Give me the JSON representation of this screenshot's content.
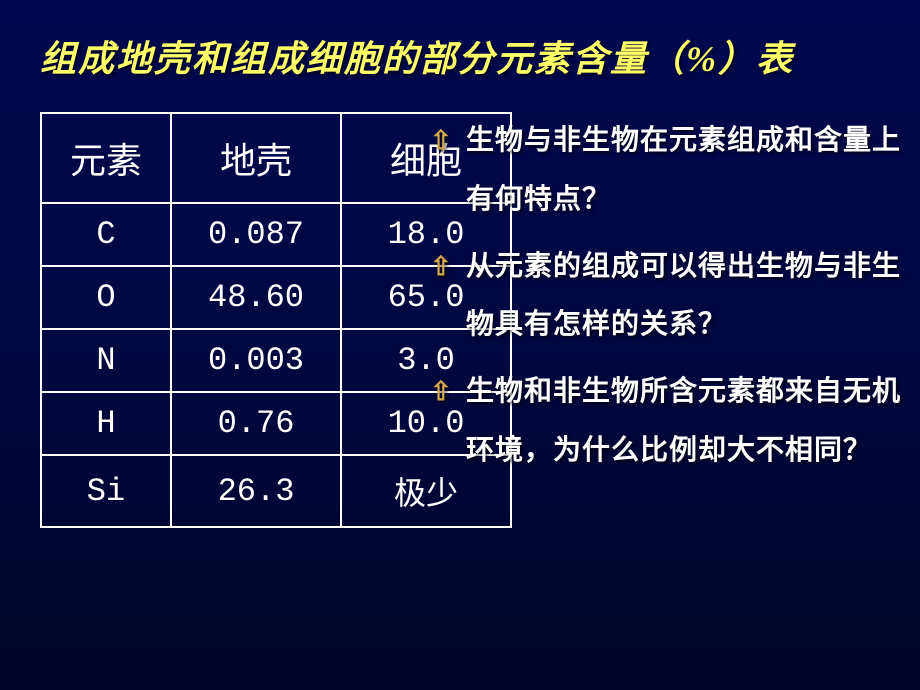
{
  "title": "组成地壳和组成细胞的部分元素含量（%）表",
  "table": {
    "headers": {
      "element": "元素",
      "crust": "地壳",
      "cell": "细胞"
    },
    "rows": [
      {
        "element": "C",
        "crust": "0.087",
        "cell": "18.0"
      },
      {
        "element": "O",
        "crust": "48.60",
        "cell": "65.0"
      },
      {
        "element": "N",
        "crust": "0.003",
        "cell": "3.0"
      },
      {
        "element": "H",
        "crust": "0.76",
        "cell": "10.0"
      },
      {
        "element": "Si",
        "crust": "26.3",
        "cell": "极少"
      }
    ]
  },
  "questions": [
    "生物与非生物在元素组成和含量上有何特点？",
    "从元素的组成可以得出生物与非生物具有怎样的关系？",
    "生物和非生物所含元素都来自无机环境，为什么比例却大不相同？"
  ],
  "style": {
    "title_color": "#ffff66",
    "text_color": "#ffffff",
    "bullet_color": "#d4a84a",
    "border_color": "#ffffff",
    "bg_gradient_top": "#000850",
    "bg_gradient_bottom": "#000428",
    "title_fontsize": 36,
    "header_fontsize": 36,
    "cell_fontsize": 32,
    "question_fontsize": 28
  }
}
